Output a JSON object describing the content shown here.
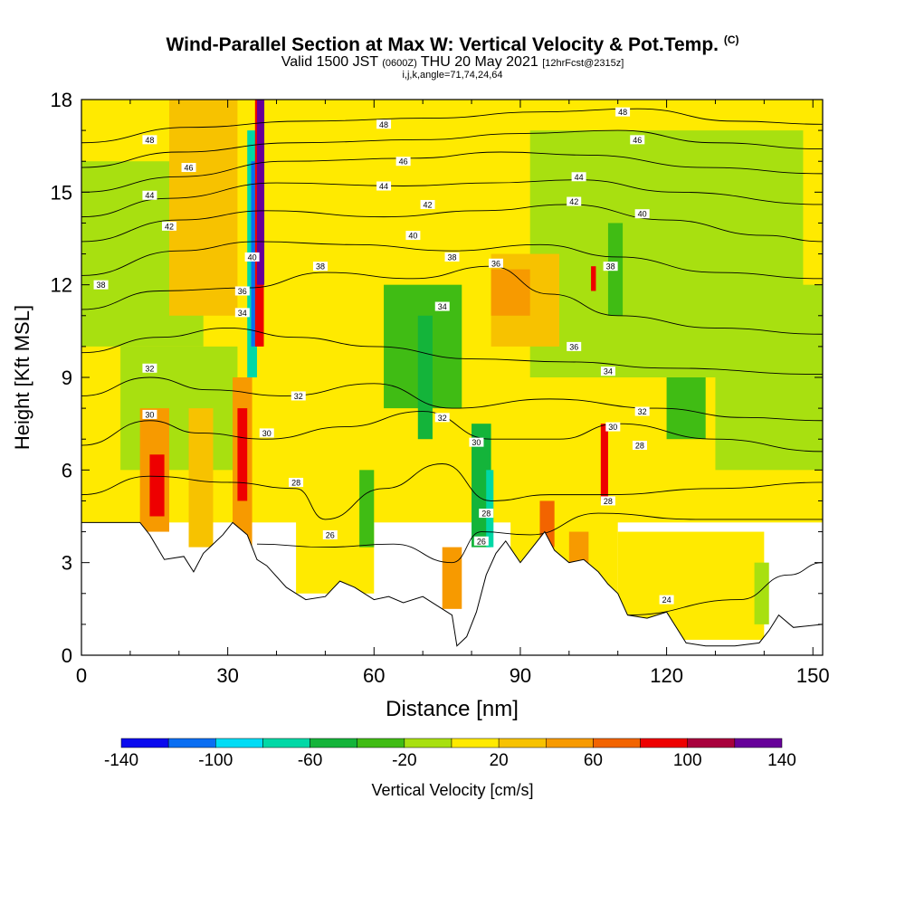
{
  "header": {
    "title": "Wind-Parallel Section at Max W: Vertical Velocity & Pot.Temp.",
    "title_mark": "(C)",
    "subtitle_prefix": "Valid 1500 JST",
    "subtitle_utc": "(0600Z)",
    "subtitle_date": "THU 20 May 2021",
    "subtitle_fcst": "[12hrFcst@2315z]",
    "subtitle_indices": "i,j,k,angle=71,74,24,64"
  },
  "chart_data": {
    "type": "heatmap",
    "title": "Wind-Parallel Section at Max W: Vertical Velocity & Pot.Temp.",
    "xlabel": "Distance [nm]",
    "ylabel": "Height [Kft MSL]",
    "xlim": [
      0,
      152
    ],
    "ylim": [
      0,
      18
    ],
    "x_ticks": [
      0,
      30,
      60,
      90,
      120,
      150
    ],
    "y_ticks": [
      0,
      3,
      6,
      9,
      12,
      15,
      18
    ],
    "colorbar": {
      "label": "Vertical Velocity [cm/s]",
      "tick_labels": [
        "-140",
        "-100",
        "-60",
        "-20",
        "20",
        "60",
        "100",
        "140"
      ],
      "tick_values": [
        -140,
        -100,
        -60,
        -20,
        20,
        60,
        100,
        140
      ],
      "bins": [
        -140,
        -120,
        -100,
        -80,
        -60,
        -40,
        -20,
        0,
        20,
        40,
        60,
        80,
        100,
        120,
        140
      ],
      "colors": [
        "#0a0aee",
        "#0a6ef2",
        "#00dcf5",
        "#00d8a6",
        "#14b43a",
        "#40bc14",
        "#a8e010",
        "#ffea00",
        "#f7c200",
        "#f79a00",
        "#f26400",
        "#ee0000",
        "#a8003c",
        "#660099"
      ]
    },
    "terrain_profile": [
      [
        0,
        4.3
      ],
      [
        12,
        4.3
      ],
      [
        14,
        3.9
      ],
      [
        17,
        3.1
      ],
      [
        21,
        3.2
      ],
      [
        23,
        2.7
      ],
      [
        25,
        3.3
      ],
      [
        27,
        3.6
      ],
      [
        29,
        3.9
      ],
      [
        31,
        4.3
      ],
      [
        34,
        3.9
      ],
      [
        36,
        3.1
      ],
      [
        38,
        2.9
      ],
      [
        42,
        2.2
      ],
      [
        46,
        1.8
      ],
      [
        50,
        1.9
      ],
      [
        53,
        2.4
      ],
      [
        56,
        2.2
      ],
      [
        60,
        1.8
      ],
      [
        63,
        1.9
      ],
      [
        66,
        1.7
      ],
      [
        70,
        1.9
      ],
      [
        73,
        1.6
      ],
      [
        76,
        1.3
      ],
      [
        77,
        0.3
      ],
      [
        79,
        0.6
      ],
      [
        81,
        1.4
      ],
      [
        83,
        2.6
      ],
      [
        85,
        3.3
      ],
      [
        87,
        3.7
      ],
      [
        90,
        3.0
      ],
      [
        92,
        3.4
      ],
      [
        95,
        4.0
      ],
      [
        97,
        3.4
      ],
      [
        100,
        3.0
      ],
      [
        103,
        3.1
      ],
      [
        106,
        2.7
      ],
      [
        108,
        2.3
      ],
      [
        110,
        2.0
      ],
      [
        112,
        1.3
      ],
      [
        116,
        1.2
      ],
      [
        120,
        1.4
      ],
      [
        124,
        0.4
      ],
      [
        128,
        0.3
      ],
      [
        134,
        0.3
      ],
      [
        139,
        0.4
      ],
      [
        141,
        0.8
      ],
      [
        143,
        1.3
      ],
      [
        146,
        0.9
      ],
      [
        152,
        1.0
      ]
    ],
    "vertical_velocity_cells": [
      {
        "x": [
          0,
          152
        ],
        "y": [
          4.3,
          18
        ],
        "w": 0
      },
      {
        "x": [
          92,
          148
        ],
        "y": [
          9,
          17
        ],
        "w": -10
      },
      {
        "x": [
          130,
          152
        ],
        "y": [
          6,
          12
        ],
        "w": -15
      },
      {
        "x": [
          0,
          25
        ],
        "y": [
          10,
          16
        ],
        "w": -8
      },
      {
        "x": [
          50,
          76
        ],
        "y": [
          5,
          10
        ],
        "w": 12
      },
      {
        "x": [
          44,
          60
        ],
        "y": [
          2,
          5
        ],
        "w": 10
      },
      {
        "x": [
          88,
          110
        ],
        "y": [
          1.5,
          5
        ],
        "w": 12
      },
      {
        "x": [
          110,
          140
        ],
        "y": [
          0.5,
          4
        ],
        "w": 8
      },
      {
        "x": [
          8,
          32
        ],
        "y": [
          6,
          10
        ],
        "w": -18
      },
      {
        "x": [
          18,
          32
        ],
        "y": [
          11,
          18
        ],
        "w": 25
      },
      {
        "x": [
          62,
          78
        ],
        "y": [
          8,
          12
        ],
        "w": -28
      },
      {
        "x": [
          84,
          98
        ],
        "y": [
          10,
          13
        ],
        "w": 38
      },
      {
        "x": [
          84,
          92
        ],
        "y": [
          11,
          12.5
        ],
        "w": 55
      },
      {
        "x": [
          12,
          18
        ],
        "y": [
          4,
          8
        ],
        "w": 55
      },
      {
        "x": [
          14,
          17
        ],
        "y": [
          4.5,
          6.5
        ],
        "w": 95
      },
      {
        "x": [
          22,
          27
        ],
        "y": [
          3.5,
          8
        ],
        "w": 35
      },
      {
        "x": [
          31,
          35
        ],
        "y": [
          3.5,
          9
        ],
        "w": 45
      },
      {
        "x": [
          32,
          34
        ],
        "y": [
          5,
          8
        ],
        "w": 85
      },
      {
        "x": [
          34,
          36
        ],
        "y": [
          9,
          17
        ],
        "w": -75
      },
      {
        "x": [
          34.8,
          35.6
        ],
        "y": [
          10,
          16
        ],
        "w": -105
      },
      {
        "x": [
          35.6,
          37.4
        ],
        "y": [
          10,
          18
        ],
        "w": 95
      },
      {
        "x": [
          36,
          37.5
        ],
        "y": [
          12,
          18
        ],
        "w": 130
      },
      {
        "x": [
          69,
          72
        ],
        "y": [
          7,
          11
        ],
        "w": -55
      },
      {
        "x": [
          80,
          84
        ],
        "y": [
          3.5,
          7.5
        ],
        "w": -45
      },
      {
        "x": [
          83,
          84.5
        ],
        "y": [
          3.5,
          6
        ],
        "w": -75
      },
      {
        "x": [
          94,
          97
        ],
        "y": [
          3.5,
          5
        ],
        "w": 65
      },
      {
        "x": [
          106.5,
          108
        ],
        "y": [
          5,
          7.5
        ],
        "w": 95
      },
      {
        "x": [
          100,
          104
        ],
        "y": [
          2.5,
          4
        ],
        "w": 50
      },
      {
        "x": [
          108,
          111
        ],
        "y": [
          11,
          14
        ],
        "w": -30
      },
      {
        "x": [
          104.5,
          105.5
        ],
        "y": [
          11.8,
          12.6
        ],
        "w": 90
      },
      {
        "x": [
          120,
          128
        ],
        "y": [
          7,
          9
        ],
        "w": -35
      },
      {
        "x": [
          138,
          141
        ],
        "y": [
          1,
          3
        ],
        "w": -20
      },
      {
        "x": [
          74,
          78
        ],
        "y": [
          1.5,
          3.5
        ],
        "w": 45
      },
      {
        "x": [
          57,
          60
        ],
        "y": [
          3.5,
          6
        ],
        "w": -30
      }
    ],
    "theta_contours": [
      {
        "value": 24,
        "points": [
          [
            112,
            1.3
          ],
          [
            135,
            1.8
          ],
          [
            145,
            2.6
          ],
          [
            152,
            3.0
          ]
        ],
        "label_at": [
          120,
          1.8
        ]
      },
      {
        "value": 26,
        "points": [
          [
            36,
            3.6
          ],
          [
            50,
            3.5
          ],
          [
            64,
            3.6
          ],
          [
            76,
            3.0
          ],
          [
            82,
            4.0
          ],
          [
            92,
            3.9
          ],
          [
            106,
            4.6
          ],
          [
            126,
            4.4
          ],
          [
            152,
            4.4
          ]
        ],
        "label_at": [
          83,
          3.8
        ]
      },
      {
        "value": 28,
        "points": [
          [
            0,
            5.2
          ],
          [
            14,
            5.8
          ],
          [
            30,
            5.6
          ],
          [
            44,
            5.4
          ],
          [
            50,
            4.4
          ],
          [
            62,
            5.4
          ],
          [
            74,
            6.2
          ],
          [
            84,
            5.0
          ],
          [
            96,
            5.2
          ],
          [
            108,
            5.2
          ],
          [
            130,
            5.4
          ],
          [
            152,
            5.6
          ]
        ],
        "label_at": [
          44,
          5.6
        ]
      },
      {
        "value": 30,
        "points": [
          [
            0,
            6.8
          ],
          [
            14,
            7.6
          ],
          [
            24,
            7.2
          ],
          [
            38,
            7.0
          ],
          [
            54,
            7.4
          ],
          [
            70,
            7.9
          ],
          [
            84,
            7.0
          ],
          [
            98,
            7.0
          ],
          [
            110,
            7.5
          ],
          [
            130,
            7.0
          ],
          [
            152,
            6.6
          ]
        ],
        "label_at": [
          38,
          7.2
        ]
      },
      {
        "value": 32,
        "points": [
          [
            0,
            8.4
          ],
          [
            14,
            9.0
          ],
          [
            26,
            8.6
          ],
          [
            42,
            8.4
          ],
          [
            60,
            8.8
          ],
          [
            76,
            8.0
          ],
          [
            96,
            8.3
          ],
          [
            118,
            8.0
          ],
          [
            136,
            7.7
          ],
          [
            152,
            7.6
          ]
        ],
        "label_at": [
          14,
          9.3
        ]
      },
      {
        "value": 34,
        "points": [
          [
            0,
            9.8
          ],
          [
            16,
            10.3
          ],
          [
            30,
            10.6
          ],
          [
            44,
            10.3
          ],
          [
            60,
            10.0
          ],
          [
            80,
            9.6
          ],
          [
            100,
            9.5
          ],
          [
            120,
            9.3
          ],
          [
            152,
            9.1
          ]
        ],
        "label_at": [
          74,
          11.3
        ]
      },
      {
        "value": 36,
        "points": [
          [
            0,
            11.2
          ],
          [
            16,
            11.8
          ],
          [
            34,
            11.9
          ],
          [
            50,
            12.4
          ],
          [
            68,
            12.2
          ],
          [
            84,
            12.6
          ],
          [
            96,
            11.7
          ],
          [
            110,
            11.0
          ],
          [
            130,
            10.6
          ],
          [
            152,
            10.4
          ]
        ],
        "label_at": [
          84,
          12.7
        ]
      },
      {
        "value": 38,
        "points": [
          [
            0,
            12.3
          ],
          [
            20,
            13.1
          ],
          [
            36,
            13.4
          ],
          [
            56,
            13.3
          ],
          [
            76,
            13.1
          ],
          [
            94,
            13.3
          ],
          [
            110,
            12.9
          ],
          [
            130,
            12.4
          ],
          [
            152,
            12.2
          ]
        ],
        "label_at": [
          4,
          12.0
        ]
      },
      {
        "value": 40,
        "points": [
          [
            0,
            13.4
          ],
          [
            20,
            14.1
          ],
          [
            38,
            14.4
          ],
          [
            62,
            14.2
          ],
          [
            82,
            14.4
          ],
          [
            100,
            14.6
          ],
          [
            120,
            14.1
          ],
          [
            140,
            13.6
          ],
          [
            152,
            13.4
          ]
        ],
        "label_at": [
          64,
          13.6
        ]
      },
      {
        "value": 42,
        "points": [
          [
            0,
            14.2
          ],
          [
            18,
            14.8
          ],
          [
            40,
            15.3
          ],
          [
            66,
            15.2
          ],
          [
            84,
            15.3
          ],
          [
            102,
            15.4
          ],
          [
            122,
            15.0
          ],
          [
            152,
            14.6
          ]
        ],
        "label_at": [
          18,
          13.9
        ]
      },
      {
        "value": 44,
        "points": [
          [
            0,
            15.0
          ],
          [
            20,
            15.5
          ],
          [
            42,
            16.0
          ],
          [
            68,
            16.1
          ],
          [
            86,
            16.3
          ],
          [
            104,
            16.2
          ],
          [
            128,
            15.8
          ],
          [
            152,
            15.6
          ]
        ],
        "label_at": [
          14,
          14.9
        ]
      },
      {
        "value": 46,
        "points": [
          [
            0,
            15.8
          ],
          [
            20,
            16.3
          ],
          [
            44,
            16.6
          ],
          [
            70,
            16.7
          ],
          [
            90,
            16.9
          ],
          [
            110,
            17.0
          ],
          [
            130,
            16.6
          ],
          [
            152,
            16.4
          ]
        ],
        "label_at": [
          22,
          15.8
        ]
      },
      {
        "value": 48,
        "points": [
          [
            0,
            16.6
          ],
          [
            22,
            17.1
          ],
          [
            46,
            17.3
          ],
          [
            72,
            17.4
          ],
          [
            94,
            17.6
          ],
          [
            114,
            17.7
          ],
          [
            134,
            17.3
          ],
          [
            152,
            17.2
          ]
        ],
        "label_at": [
          14,
          16.7
        ]
      }
    ],
    "contour_labels": [
      {
        "text": "48",
        "x": 14,
        "y": 16.7
      },
      {
        "text": "48",
        "x": 62,
        "y": 17.2
      },
      {
        "text": "48",
        "x": 111,
        "y": 17.6
      },
      {
        "text": "46",
        "x": 22,
        "y": 15.8
      },
      {
        "text": "46",
        "x": 66,
        "y": 16.0
      },
      {
        "text": "46",
        "x": 114,
        "y": 16.7
      },
      {
        "text": "44",
        "x": 14,
        "y": 14.9
      },
      {
        "text": "44",
        "x": 62,
        "y": 15.2
      },
      {
        "text": "44",
        "x": 102,
        "y": 15.5
      },
      {
        "text": "42",
        "x": 18,
        "y": 13.9
      },
      {
        "text": "42",
        "x": 71,
        "y": 14.6
      },
      {
        "text": "42",
        "x": 101,
        "y": 14.7
      },
      {
        "text": "40",
        "x": 35,
        "y": 12.9
      },
      {
        "text": "40",
        "x": 68,
        "y": 13.6
      },
      {
        "text": "40",
        "x": 115,
        "y": 14.3
      },
      {
        "text": "38",
        "x": 4,
        "y": 12.0
      },
      {
        "text": "38",
        "x": 49,
        "y": 12.6
      },
      {
        "text": "38",
        "x": 76,
        "y": 12.9
      },
      {
        "text": "38",
        "x": 108.5,
        "y": 12.6
      },
      {
        "text": "36",
        "x": 33,
        "y": 11.8
      },
      {
        "text": "36",
        "x": 85,
        "y": 12.7
      },
      {
        "text": "36",
        "x": 101,
        "y": 10.0
      },
      {
        "text": "34",
        "x": 33,
        "y": 11.1
      },
      {
        "text": "34",
        "x": 74,
        "y": 11.3
      },
      {
        "text": "34",
        "x": 108,
        "y": 9.2
      },
      {
        "text": "32",
        "x": 14,
        "y": 9.3
      },
      {
        "text": "32",
        "x": 44.5,
        "y": 8.4
      },
      {
        "text": "32",
        "x": 74,
        "y": 7.7
      },
      {
        "text": "32",
        "x": 115,
        "y": 7.9
      },
      {
        "text": "30",
        "x": 14,
        "y": 7.8
      },
      {
        "text": "30",
        "x": 38,
        "y": 7.2
      },
      {
        "text": "30",
        "x": 81,
        "y": 6.9
      },
      {
        "text": "30",
        "x": 109,
        "y": 7.4
      },
      {
        "text": "28",
        "x": 44,
        "y": 5.6
      },
      {
        "text": "28",
        "x": 83,
        "y": 4.6
      },
      {
        "text": "28",
        "x": 108,
        "y": 5.0
      },
      {
        "text": "28",
        "x": 114.5,
        "y": 6.8
      },
      {
        "text": "26",
        "x": 51,
        "y": 3.9
      },
      {
        "text": "26",
        "x": 82,
        "y": 3.7
      },
      {
        "text": "24",
        "x": 120,
        "y": 1.8
      }
    ]
  }
}
